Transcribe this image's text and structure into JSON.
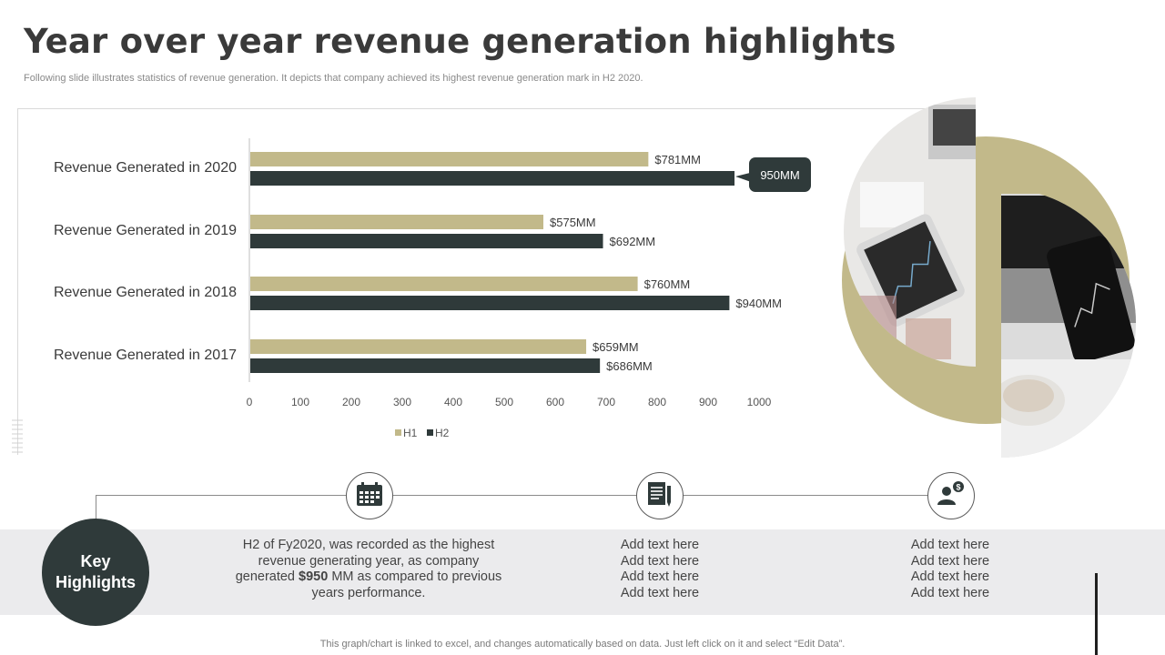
{
  "header": {
    "title": "Year over year revenue generation highlights",
    "subtitle": "Following slide illustrates statistics of revenue generation. It depicts that company achieved its highest revenue generation mark in H2 2020."
  },
  "chart_data": {
    "type": "bar",
    "orientation": "horizontal",
    "categories": [
      "Revenue Generated in 2020",
      "Revenue Generated in 2019",
      "Revenue Generated in 2018",
      "Revenue Generated in 2017"
    ],
    "series": [
      {
        "name": "H1",
        "color": "#c2b98a",
        "values": [
          781,
          575,
          760,
          659
        ],
        "labels": [
          "$781MM",
          "$575MM",
          "$760MM",
          "$659MM"
        ]
      },
      {
        "name": "H2",
        "color": "#2f3a3a",
        "values": [
          950,
          692,
          940,
          686
        ],
        "labels": [
          "",
          "$692MM",
          "$940MM",
          "$686MM"
        ]
      }
    ],
    "xlim": [
      0,
      1000
    ],
    "xticks": [
      "0",
      "100",
      "200",
      "300",
      "400",
      "500",
      "600",
      "700",
      "800",
      "900",
      "1000"
    ],
    "callout": "950MM",
    "legend": [
      "H1",
      "H2"
    ],
    "legend_position": "bottom"
  },
  "highlights": {
    "key_line1": "Key",
    "key_line2": "Highlights",
    "items": [
      {
        "icon": "calendar-icon",
        "text_pre": "H2 of Fy2020, was recorded as the highest revenue generating year, as company generated ",
        "text_bold": "$950",
        "text_post": " MM as compared to previous years performance."
      },
      {
        "icon": "document-icon",
        "lines": [
          "Add text here",
          "Add text here",
          "Add text here",
          "Add text here"
        ]
      },
      {
        "icon": "user-dollar-icon",
        "lines": [
          "Add text here",
          "Add text here",
          "Add text here",
          "Add text here"
        ]
      }
    ]
  },
  "footer": {
    "note": "This graph/chart is linked to excel, and changes automatically based on data. Just left click on it and select “Edit Data”."
  },
  "colors": {
    "accent": "#c2b98a",
    "dark": "#2f3a3a",
    "band": "#ebebed"
  }
}
